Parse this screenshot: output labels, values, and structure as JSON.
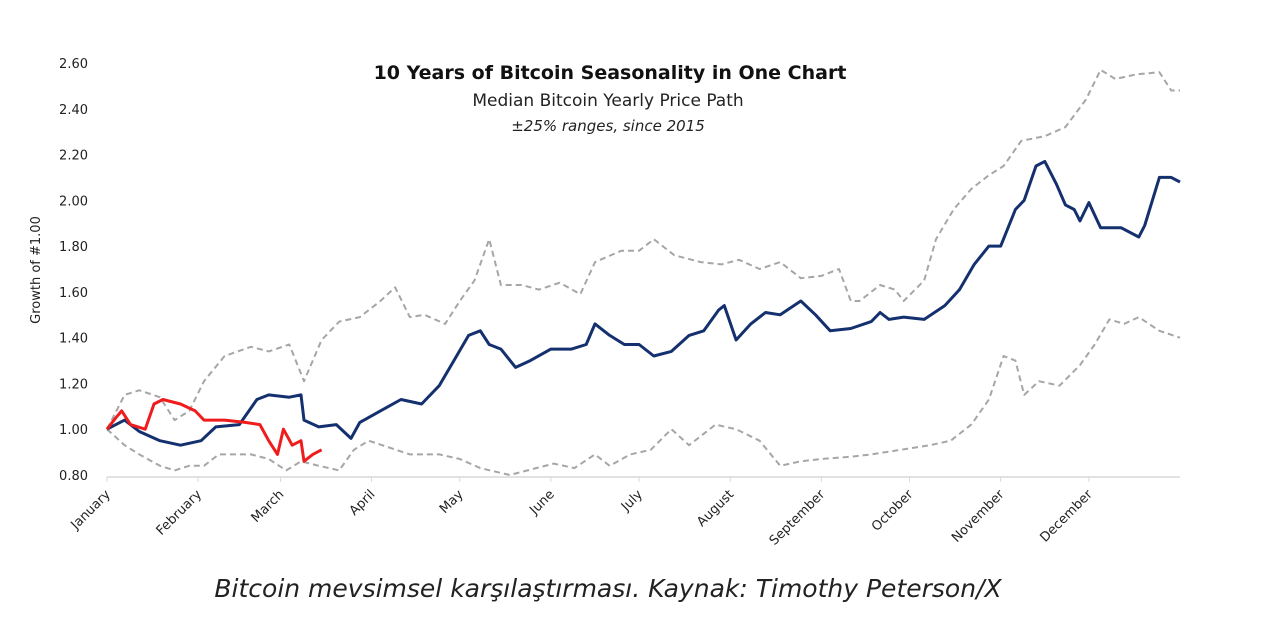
{
  "chart_data": {
    "type": "line",
    "title": "10 Years of Bitcoin Seasonality in One Chart",
    "subtitle": "Median Bitcoin Yearly Price Path",
    "note": "±25% ranges, since 2015",
    "ylabel": "Growth of #1.00",
    "xlabel": "",
    "ylim": [
      0.8,
      2.6
    ],
    "yticks": [
      "0.80",
      "1.00",
      "1.20",
      "1.40",
      "1.60",
      "1.80",
      "2.00",
      "2.20",
      "2.40",
      "2.60"
    ],
    "xlim_day_of_year": [
      0,
      365
    ],
    "xticks": [
      {
        "label": "January",
        "day": 0
      },
      {
        "label": "February",
        "day": 31
      },
      {
        "label": "March",
        "day": 59
      },
      {
        "label": "April",
        "day": 90
      },
      {
        "label": "May",
        "day": 120
      },
      {
        "label": "June",
        "day": 151
      },
      {
        "label": "July",
        "day": 181
      },
      {
        "label": "August",
        "day": 212
      },
      {
        "label": "September",
        "day": 243
      },
      {
        "label": "October",
        "day": 273
      },
      {
        "label": "November",
        "day": 304
      },
      {
        "label": "December",
        "day": 334
      }
    ],
    "grid": false,
    "series": [
      {
        "key": "upper",
        "style": "dashed",
        "color": "#a6a6a6",
        "points": [
          [
            0,
            1.0
          ],
          [
            6,
            1.15
          ],
          [
            11,
            1.17
          ],
          [
            18,
            1.14
          ],
          [
            23,
            1.04
          ],
          [
            28,
            1.08
          ],
          [
            33,
            1.21
          ],
          [
            40,
            1.32
          ],
          [
            49,
            1.36
          ],
          [
            55,
            1.34
          ],
          [
            62,
            1.37
          ],
          [
            67,
            1.21
          ],
          [
            73,
            1.39
          ],
          [
            79,
            1.47
          ],
          [
            86,
            1.49
          ],
          [
            93,
            1.56
          ],
          [
            98,
            1.62
          ],
          [
            103,
            1.49
          ],
          [
            108,
            1.5
          ],
          [
            115,
            1.46
          ],
          [
            120,
            1.56
          ],
          [
            125,
            1.65
          ],
          [
            130,
            1.83
          ],
          [
            134,
            1.63
          ],
          [
            141,
            1.63
          ],
          [
            147,
            1.61
          ],
          [
            154,
            1.64
          ],
          [
            161,
            1.59
          ],
          [
            166,
            1.73
          ],
          [
            175,
            1.78
          ],
          [
            181,
            1.78
          ],
          [
            186,
            1.83
          ],
          [
            193,
            1.76
          ],
          [
            202,
            1.73
          ],
          [
            209,
            1.72
          ],
          [
            215,
            1.74
          ],
          [
            222,
            1.7
          ],
          [
            229,
            1.73
          ],
          [
            236,
            1.66
          ],
          [
            243,
            1.67
          ],
          [
            249,
            1.7
          ],
          [
            253,
            1.56
          ],
          [
            256,
            1.56
          ],
          [
            263,
            1.63
          ],
          [
            268,
            1.61
          ],
          [
            271,
            1.56
          ],
          [
            278,
            1.65
          ],
          [
            282,
            1.83
          ],
          [
            288,
            1.96
          ],
          [
            294,
            2.05
          ],
          [
            300,
            2.11
          ],
          [
            305,
            2.15
          ],
          [
            311,
            2.26
          ],
          [
            319,
            2.28
          ],
          [
            326,
            2.32
          ],
          [
            333,
            2.44
          ],
          [
            338,
            2.57
          ],
          [
            343,
            2.53
          ],
          [
            350,
            2.55
          ],
          [
            358,
            2.56
          ],
          [
            362,
            2.48
          ],
          [
            365,
            2.48
          ]
        ]
      },
      {
        "key": "lower",
        "style": "dashed",
        "color": "#a6a6a6",
        "points": [
          [
            0,
            1.0
          ],
          [
            6,
            0.93
          ],
          [
            11,
            0.89
          ],
          [
            18,
            0.84
          ],
          [
            23,
            0.82
          ],
          [
            28,
            0.84
          ],
          [
            33,
            0.84
          ],
          [
            38,
            0.89
          ],
          [
            49,
            0.89
          ],
          [
            55,
            0.87
          ],
          [
            61,
            0.82
          ],
          [
            66,
            0.86
          ],
          [
            72,
            0.84
          ],
          [
            79,
            0.82
          ],
          [
            84,
            0.91
          ],
          [
            89,
            0.95
          ],
          [
            96,
            0.92
          ],
          [
            103,
            0.89
          ],
          [
            113,
            0.89
          ],
          [
            120,
            0.87
          ],
          [
            127,
            0.83
          ],
          [
            137,
            0.8
          ],
          [
            146,
            0.83
          ],
          [
            152,
            0.85
          ],
          [
            159,
            0.83
          ],
          [
            166,
            0.89
          ],
          [
            171,
            0.84
          ],
          [
            178,
            0.89
          ],
          [
            185,
            0.91
          ],
          [
            192,
            1.0
          ],
          [
            198,
            0.93
          ],
          [
            207,
            1.02
          ],
          [
            214,
            1.0
          ],
          [
            222,
            0.95
          ],
          [
            229,
            0.84
          ],
          [
            236,
            0.86
          ],
          [
            243,
            0.87
          ],
          [
            253,
            0.88
          ],
          [
            260,
            0.89
          ],
          [
            270,
            0.91
          ],
          [
            280,
            0.93
          ],
          [
            287,
            0.95
          ],
          [
            294,
            1.02
          ],
          [
            300,
            1.13
          ],
          [
            305,
            1.32
          ],
          [
            309,
            1.3
          ],
          [
            312,
            1.15
          ],
          [
            317,
            1.21
          ],
          [
            324,
            1.19
          ],
          [
            331,
            1.28
          ],
          [
            336,
            1.37
          ],
          [
            341,
            1.48
          ],
          [
            346,
            1.46
          ],
          [
            351,
            1.49
          ],
          [
            358,
            1.43
          ],
          [
            365,
            1.4
          ]
        ]
      },
      {
        "key": "median",
        "style": "solid",
        "color": "#14306e",
        "points": [
          [
            0,
            1.0
          ],
          [
            6,
            1.04
          ],
          [
            11,
            0.99
          ],
          [
            18,
            0.95
          ],
          [
            25,
            0.93
          ],
          [
            32,
            0.95
          ],
          [
            37,
            1.01
          ],
          [
            45,
            1.02
          ],
          [
            51,
            1.13
          ],
          [
            55,
            1.15
          ],
          [
            62,
            1.14
          ],
          [
            66,
            1.15
          ],
          [
            67,
            1.04
          ],
          [
            72,
            1.01
          ],
          [
            78,
            1.02
          ],
          [
            83,
            0.96
          ],
          [
            86,
            1.03
          ],
          [
            93,
            1.08
          ],
          [
            100,
            1.13
          ],
          [
            107,
            1.11
          ],
          [
            113,
            1.19
          ],
          [
            118,
            1.3
          ],
          [
            123,
            1.41
          ],
          [
            127,
            1.43
          ],
          [
            130,
            1.37
          ],
          [
            134,
            1.35
          ],
          [
            139,
            1.27
          ],
          [
            144,
            1.3
          ],
          [
            151,
            1.35
          ],
          [
            158,
            1.35
          ],
          [
            163,
            1.37
          ],
          [
            166,
            1.46
          ],
          [
            171,
            1.41
          ],
          [
            176,
            1.37
          ],
          [
            181,
            1.37
          ],
          [
            186,
            1.32
          ],
          [
            192,
            1.34
          ],
          [
            198,
            1.41
          ],
          [
            203,
            1.43
          ],
          [
            208,
            1.52
          ],
          [
            210,
            1.54
          ],
          [
            214,
            1.39
          ],
          [
            219,
            1.46
          ],
          [
            224,
            1.51
          ],
          [
            229,
            1.5
          ],
          [
            236,
            1.56
          ],
          [
            241,
            1.5
          ],
          [
            246,
            1.43
          ],
          [
            253,
            1.44
          ],
          [
            260,
            1.47
          ],
          [
            263,
            1.51
          ],
          [
            266,
            1.48
          ],
          [
            271,
            1.49
          ],
          [
            278,
            1.48
          ],
          [
            285,
            1.54
          ],
          [
            290,
            1.61
          ],
          [
            295,
            1.72
          ],
          [
            300,
            1.8
          ],
          [
            304,
            1.8
          ],
          [
            309,
            1.96
          ],
          [
            312,
            2.0
          ],
          [
            316,
            2.15
          ],
          [
            319,
            2.17
          ],
          [
            323,
            2.07
          ],
          [
            326,
            1.98
          ],
          [
            329,
            1.96
          ],
          [
            331,
            1.91
          ],
          [
            334,
            1.99
          ],
          [
            338,
            1.88
          ],
          [
            345,
            1.88
          ],
          [
            351,
            1.84
          ],
          [
            353,
            1.89
          ],
          [
            358,
            2.1
          ],
          [
            362,
            2.1
          ],
          [
            365,
            2.08
          ]
        ]
      },
      {
        "key": "current",
        "style": "solid",
        "color": "#f01c1c",
        "points": [
          [
            0,
            1.0
          ],
          [
            3,
            1.05
          ],
          [
            5,
            1.08
          ],
          [
            8,
            1.02
          ],
          [
            13,
            1.0
          ],
          [
            16,
            1.11
          ],
          [
            19,
            1.13
          ],
          [
            25,
            1.11
          ],
          [
            30,
            1.08
          ],
          [
            33,
            1.04
          ],
          [
            40,
            1.04
          ],
          [
            47,
            1.03
          ],
          [
            52,
            1.02
          ],
          [
            55,
            0.95
          ],
          [
            58,
            0.89
          ],
          [
            60,
            1.0
          ],
          [
            63,
            0.93
          ],
          [
            66,
            0.95
          ],
          [
            67,
            0.86
          ],
          [
            70,
            0.89
          ],
          [
            73,
            0.91
          ]
        ]
      }
    ]
  },
  "caption": "Bitcoin mevsimsel karşılaştırması. Kaynak: Timothy Peterson/X"
}
